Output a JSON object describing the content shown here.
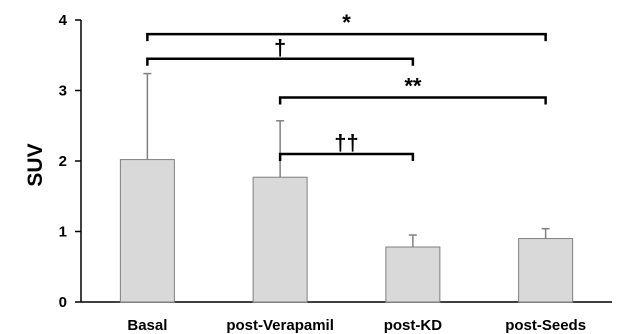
{
  "chart_data": {
    "type": "bar",
    "title": "",
    "xlabel": "",
    "ylabel": "SUV",
    "ylim": [
      0,
      4
    ],
    "yticks": [
      0,
      1,
      2,
      3,
      4
    ],
    "grid": false,
    "categories": [
      "Basal",
      "post-Verapamil",
      "post-KD",
      "post-Seeds"
    ],
    "values": [
      2.02,
      1.77,
      0.78,
      0.9
    ],
    "error_plus": [
      1.22,
      0.8,
      0.17,
      0.14
    ],
    "bar_color": "#d9d9d9",
    "bar_edge_color": "#7f7f7f",
    "significance": [
      {
        "from": 0,
        "to": 3,
        "y": 3.8,
        "label": "*"
      },
      {
        "from": 0,
        "to": 2,
        "y": 3.45,
        "label": "†"
      },
      {
        "from": 1,
        "to": 3,
        "y": 2.9,
        "label": "**"
      },
      {
        "from": 1,
        "to": 2,
        "y": 2.1,
        "label": "††"
      }
    ]
  }
}
